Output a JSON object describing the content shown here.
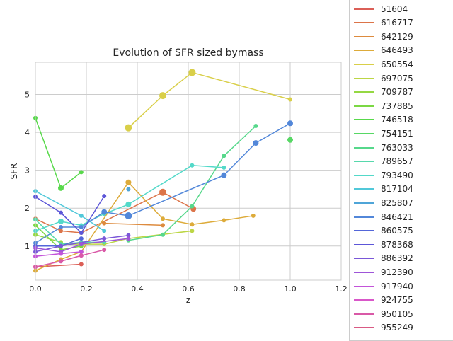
{
  "chart_data": {
    "type": "line",
    "title": "Evolution of SFR sized bymass",
    "xlabel": "z",
    "ylabel": "SFR",
    "xlim": [
      0.0,
      1.2
    ],
    "ylim": [
      0.1,
      5.85
    ],
    "x_ticks": [
      "0.0",
      "0.2",
      "0.4",
      "0.6",
      "0.8",
      "1.0",
      "1.2"
    ],
    "y_ticks": [
      "1",
      "2",
      "3",
      "4",
      "5"
    ],
    "grid": true,
    "legend_position": "right, outside plot",
    "series": [
      {
        "name": "51604",
        "color": "#db5f57",
        "x": [
          0.0,
          0.18
        ],
        "y": [
          0.45,
          0.52
        ],
        "s": [
          3,
          3
        ]
      },
      {
        "name": "616717",
        "color": "#dc7449",
        "x": [
          0.0,
          0.1,
          0.18,
          0.5,
          0.62
        ],
        "y": [
          1.72,
          1.4,
          1.35,
          2.42,
          1.98
        ],
        "s": [
          3,
          3,
          3,
          5,
          4
        ]
      },
      {
        "name": "642129",
        "color": "#dd8b3e",
        "x": [
          0.27,
          0.5
        ],
        "y": [
          1.6,
          1.55
        ],
        "s": [
          3,
          3
        ]
      },
      {
        "name": "646493",
        "color": "#ddab3a",
        "x": [
          0.0,
          0.1,
          0.18,
          0.365,
          0.5,
          0.615,
          0.74,
          0.855
        ],
        "y": [
          0.35,
          0.65,
          0.85,
          2.68,
          1.72,
          1.57,
          1.68,
          1.8
        ],
        "s": [
          3,
          3,
          3,
          4,
          3,
          3,
          3,
          3
        ]
      },
      {
        "name": "650554",
        "color": "#d9cf49",
        "x": [
          0.365,
          0.5,
          0.615,
          1.0
        ],
        "y": [
          4.12,
          4.97,
          5.58,
          4.87
        ],
        "s": [
          5,
          5,
          5,
          3
        ]
      },
      {
        "name": "697075",
        "color": "#bcd645",
        "x": [
          0.1,
          0.27,
          0.365,
          0.615
        ],
        "y": [
          1.05,
          1.05,
          1.2,
          1.4
        ],
        "s": [
          3,
          3,
          3,
          3
        ]
      },
      {
        "name": "709787",
        "color": "#95d843",
        "x": [
          0.0,
          0.1
        ],
        "y": [
          1.3,
          1.1
        ],
        "s": [
          3,
          3
        ]
      },
      {
        "name": "737885",
        "color": "#7bd844",
        "x": [
          0.0,
          0.1,
          0.18
        ],
        "y": [
          1.55,
          0.9,
          1.0
        ],
        "s": [
          3,
          3,
          3
        ]
      },
      {
        "name": "746518",
        "color": "#58d94b",
        "x": [
          0.0,
          0.1,
          0.18
        ],
        "y": [
          4.38,
          2.53,
          2.95
        ],
        "s": [
          3,
          4,
          3
        ]
      },
      {
        "name": "754151",
        "color": "#57d865",
        "x": [
          1.0
        ],
        "y": [
          3.8
        ],
        "s": [
          4
        ]
      },
      {
        "name": "763033",
        "color": "#56d88b",
        "x": [
          0.365,
          0.5,
          0.615,
          0.74,
          0.865
        ],
        "y": [
          1.15,
          1.3,
          2.05,
          3.38,
          4.17
        ],
        "s": [
          3,
          3,
          3,
          3,
          3
        ]
      },
      {
        "name": "789657",
        "color": "#57d8ac",
        "x": [
          0.0,
          0.1,
          0.18,
          0.27
        ],
        "y": [
          1.7,
          1.05,
          1.1,
          1.1
        ],
        "s": [
          3,
          3,
          3,
          3
        ]
      },
      {
        "name": "793490",
        "color": "#53d9c9",
        "x": [
          0.0,
          0.1,
          0.18,
          0.27,
          0.365,
          0.615,
          0.74
        ],
        "y": [
          1.4,
          1.65,
          1.55,
          1.85,
          2.1,
          3.13,
          3.07
        ],
        "s": [
          3,
          4,
          3,
          3,
          4,
          3,
          3
        ]
      },
      {
        "name": "817104",
        "color": "#51c8d9",
        "x": [
          0.0,
          0.18,
          0.27
        ],
        "y": [
          2.45,
          1.8,
          1.4
        ],
        "s": [
          3,
          3,
          3
        ]
      },
      {
        "name": "825807",
        "color": "#4fa5d8",
        "x": [
          0.365
        ],
        "y": [
          2.5
        ],
        "s": [
          3
        ]
      },
      {
        "name": "846421",
        "color": "#5287d9",
        "x": [
          0.0,
          0.1,
          0.18,
          0.27,
          0.365,
          0.74,
          0.865,
          1.0
        ],
        "y": [
          1.08,
          1.5,
          1.5,
          1.9,
          1.8,
          2.87,
          3.72,
          4.24
        ],
        "s": [
          3,
          3,
          3,
          4,
          5,
          4,
          4,
          4
        ]
      },
      {
        "name": "860575",
        "color": "#5366d9",
        "x": [
          0.0,
          0.1,
          0.18
        ],
        "y": [
          1.0,
          1.0,
          1.2
        ],
        "s": [
          3,
          3,
          3
        ]
      },
      {
        "name": "878368",
        "color": "#5c56d8",
        "x": [
          0.0,
          0.1,
          0.18,
          0.27
        ],
        "y": [
          2.3,
          1.88,
          1.35,
          2.32
        ],
        "s": [
          3,
          3,
          3,
          3
        ]
      },
      {
        "name": "886392",
        "color": "#7a57d8",
        "x": [
          0.0,
          0.1,
          0.27,
          0.365
        ],
        "y": [
          0.85,
          1.0,
          1.2,
          1.28
        ],
        "s": [
          3,
          3,
          3,
          3
        ]
      },
      {
        "name": "912390",
        "color": "#9e55d8",
        "x": [
          0.0,
          0.1,
          0.18,
          0.365
        ],
        "y": [
          0.95,
          0.85,
          1.05,
          1.2
        ],
        "s": [
          3,
          3,
          3,
          3
        ]
      },
      {
        "name": "917940",
        "color": "#c353d9",
        "x": [
          0.0,
          0.1,
          0.18
        ],
        "y": [
          0.73,
          0.8,
          0.85
        ],
        "s": [
          3,
          3,
          3
        ]
      },
      {
        "name": "924755",
        "color": "#d957c9",
        "x": [
          0.1,
          0.18
        ],
        "y": [
          0.6,
          0.75
        ],
        "s": [
          3,
          3
        ]
      },
      {
        "name": "950105",
        "color": "#d959a7",
        "x": [
          0.0,
          0.1,
          0.18,
          0.27
        ],
        "y": [
          0.45,
          0.6,
          0.75,
          0.9
        ],
        "s": [
          3,
          3,
          3,
          3
        ]
      },
      {
        "name": "955249",
        "color": "#d95a84",
        "x": [],
        "y": [],
        "s": []
      }
    ]
  }
}
